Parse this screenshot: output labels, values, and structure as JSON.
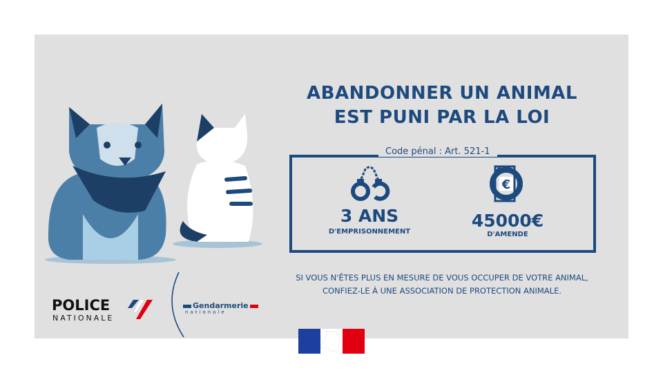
{
  "title": {
    "line1": "ABANDONNER UN ANIMAL",
    "line2": "EST PUNI PAR LA LOI"
  },
  "code": "Code pénal : Art. 521-1",
  "penalties": [
    {
      "icon": "handcuffs-icon",
      "value": "3 ANS",
      "label": "D'EMPRISONNEMENT"
    },
    {
      "icon": "euro-document-icon",
      "value": "45000€",
      "label": "D'AMENDE"
    }
  ],
  "note": {
    "line1": "SI VOUS N'ÊTES PLUS EN MESURE DE VOUS OCCUPER DE VOTRE ANIMAL,",
    "line2": "CONFIEZ-LE À UNE ASSOCIATION DE PROTECTION ANIMALE."
  },
  "logos": {
    "police": "POLICE",
    "police_sub": "NATIONALE",
    "gendarmerie": "Gendarmerie",
    "gendarmerie_sub": "nationale",
    "republique": "Marianne"
  },
  "colors": {
    "primary": "#1d4a7e",
    "background": "#e0e0e0",
    "red": "#e1000f"
  }
}
